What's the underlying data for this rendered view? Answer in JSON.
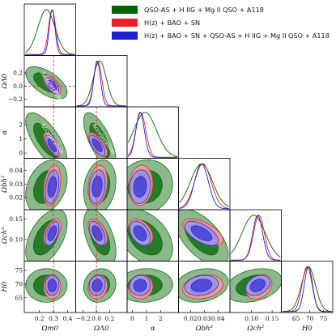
{
  "chart_data": {
    "type": "corner",
    "parameters": [
      {
        "key": "Om",
        "label": "Ωm0",
        "range": [
          0.1,
          0.45
        ],
        "ticks": [
          "0.2",
          "0.3",
          "0.4"
        ]
      },
      {
        "key": "OL",
        "label": "ΩΛ0",
        "range": [
          -0.3,
          0.45
        ],
        "ticks": [
          "−0.2",
          "0.0",
          "0.2"
        ]
      },
      {
        "key": "al",
        "label": "α",
        "range": [
          -0.3,
          3.2
        ],
        "ticks": [
          "0",
          "1",
          "2"
        ]
      },
      {
        "key": "ob",
        "label": "Ωbh²",
        "range": [
          0.012,
          0.048
        ],
        "ticks": [
          "0.02",
          "0.03",
          "0.04"
        ]
      },
      {
        "key": "oc",
        "label": "Ωch²",
        "range": [
          0.05,
          0.17
        ],
        "ticks": [
          "0.10",
          "0.15"
        ]
      },
      {
        "key": "H0",
        "label": "H0",
        "range": [
          60,
          78
        ],
        "ticks": [
          "65",
          "70",
          "75"
        ]
      }
    ],
    "annotations": [
      {
        "panel": [
          1,
          0
        ],
        "texts": [
          "Decel.",
          "Acceleration"
        ]
      },
      {
        "panel": [
          2,
          0
        ],
        "texts": [
          "Decel.",
          "Acceleration"
        ]
      },
      {
        "panel": [
          2,
          1
        ],
        "texts": [
          "Decel.",
          "Acceleration"
        ]
      }
    ],
    "reference_lines": {
      "Om": 0.3,
      "OL": 0.0
    },
    "series": [
      {
        "name": "QSO-AS + H IIG + Mg II QSO + A118",
        "color": "#006400",
        "style": "filled",
        "mean": {
          "Om": 0.25,
          "OL": 0.05,
          "al": 0.9,
          "ob": 0.028,
          "oc": 0.105,
          "H0": 69.5
        },
        "sigma": {
          "Om": 0.06,
          "OL": 0.1,
          "al": 0.8,
          "ob": 0.008,
          "oc": 0.028,
          "H0": 2.5
        }
      },
      {
        "name": "H(z) + BAO + SN",
        "color": "#e8202a",
        "style": "filled",
        "mean": {
          "Om": 0.29,
          "OL": 0.02,
          "al": 0.6,
          "ob": 0.029,
          "oc": 0.118,
          "H0": 69.0
        },
        "sigma": {
          "Om": 0.025,
          "OL": 0.06,
          "al": 0.35,
          "ob": 0.006,
          "oc": 0.013,
          "H0": 1.8
        }
      },
      {
        "name": "H(z) + BAO + SN + QSO-AS + H IIG + Mg II QSO + A118",
        "color": "#1f1fd6",
        "style": "filled",
        "mean": {
          "Om": 0.29,
          "OL": 0.01,
          "al": 0.55,
          "ob": 0.028,
          "oc": 0.115,
          "H0": 69.5
        },
        "sigma": {
          "Om": 0.02,
          "OL": 0.05,
          "al": 0.3,
          "ob": 0.005,
          "oc": 0.012,
          "H0": 1.5
        }
      }
    ],
    "legend_position": "top-right",
    "grid": false
  }
}
